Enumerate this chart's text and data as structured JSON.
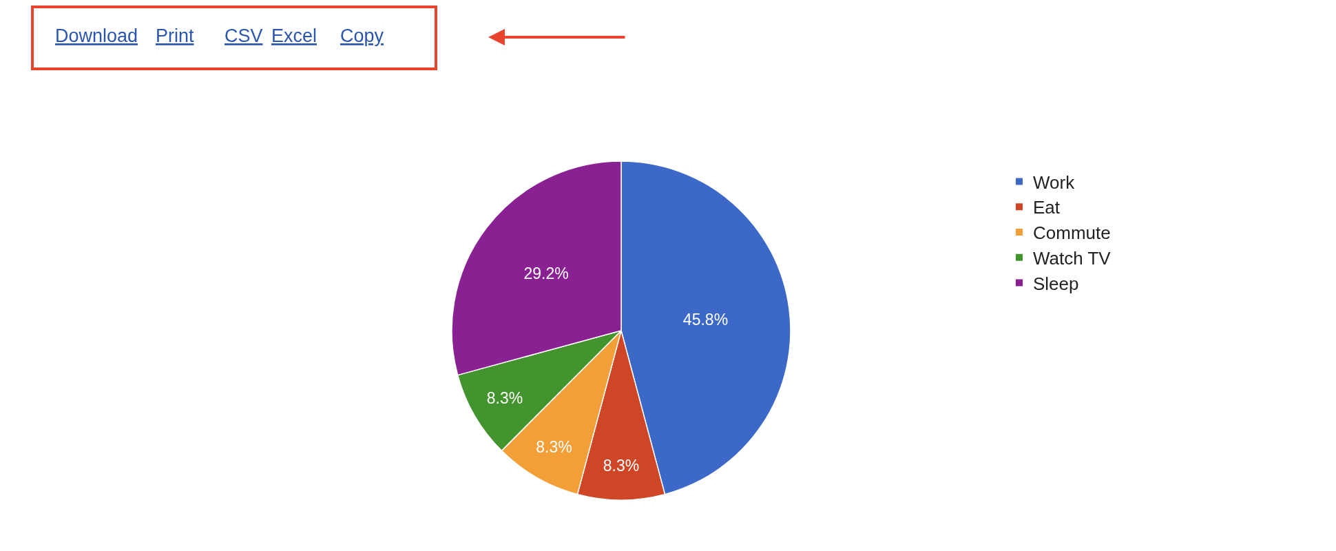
{
  "chart_data": {
    "type": "pie",
    "categories": [
      "Work",
      "Eat",
      "Commute",
      "Watch TV",
      "Sleep"
    ],
    "values": [
      45.8,
      8.3,
      8.3,
      8.3,
      29.2
    ],
    "colors": [
      "#3c69c8",
      "#cf4627",
      "#f29f38",
      "#43932f",
      "#8a2192"
    ],
    "value_labels": [
      "45.8%",
      "8.3%",
      "8.3%",
      "8.3%",
      "29.2%"
    ],
    "legend": "right",
    "annotations": [
      "Download",
      "Print",
      "CSV",
      "Excel",
      "Copy"
    ]
  }
}
